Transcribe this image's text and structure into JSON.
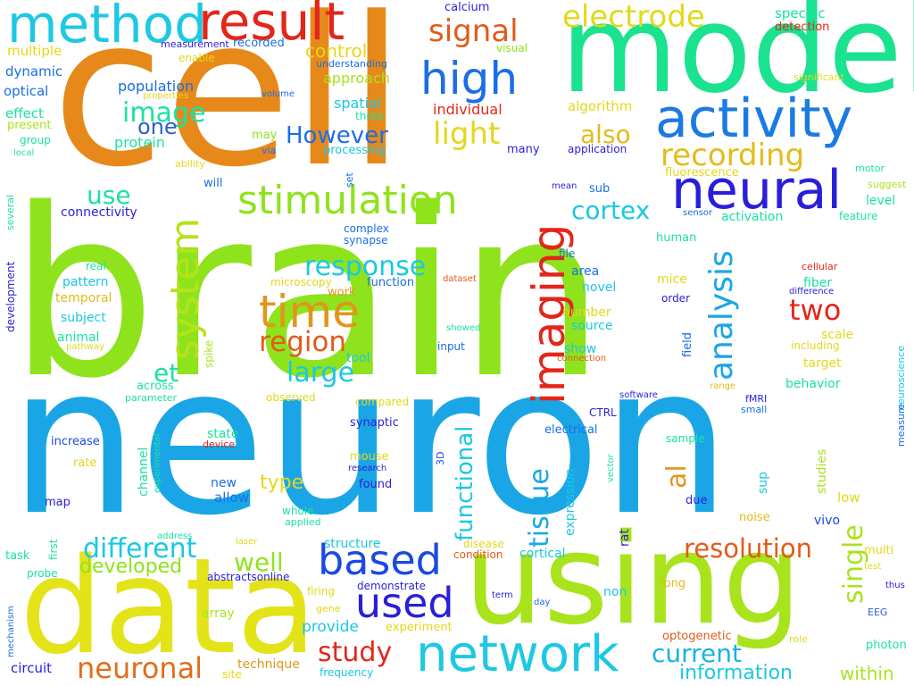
{
  "words": [
    {
      "text": "brain",
      "color": "#8ee31c"
    },
    {
      "text": "neuron",
      "color": "#1aa6e6"
    },
    {
      "text": "cell",
      "color": "#e6891a"
    },
    {
      "text": "model",
      "color": "#1ae28f"
    },
    {
      "text": "data",
      "color": "#e3e31a"
    },
    {
      "text": "using",
      "color": "#a8e31c"
    },
    {
      "text": "method",
      "color": "#1ec8e3"
    },
    {
      "text": "result",
      "color": "#e3261a"
    },
    {
      "text": "neural",
      "color": "#2a1fd9"
    },
    {
      "text": "activity",
      "color": "#1a7be3"
    },
    {
      "text": "high",
      "color": "#1a6ee6"
    },
    {
      "text": "signal",
      "color": "#e35a1a"
    },
    {
      "text": "electrode",
      "color": "#e3d81a"
    },
    {
      "text": "stimulation",
      "color": "#8ee31c"
    },
    {
      "text": "system",
      "color": "#b5e31a"
    },
    {
      "text": "time",
      "color": "#e3951a"
    },
    {
      "text": "imaging",
      "color": "#e3261a"
    },
    {
      "text": "network",
      "color": "#1ec8e3"
    },
    {
      "text": "based",
      "color": "#1a49e3"
    },
    {
      "text": "used",
      "color": "#2a1fd9"
    },
    {
      "text": "recording",
      "color": "#e3bb1a"
    },
    {
      "text": "analysis",
      "color": "#1aa6e6"
    },
    {
      "text": "neuronal",
      "color": "#e36d1a"
    },
    {
      "text": "response",
      "color": "#1ac8e3"
    },
    {
      "text": "region",
      "color": "#e35a1a"
    },
    {
      "text": "large",
      "color": "#1ac8e3"
    },
    {
      "text": "different",
      "color": "#1ac8e3"
    },
    {
      "text": "study",
      "color": "#e3261a"
    },
    {
      "text": "current",
      "color": "#1ab2e3"
    },
    {
      "text": "resolution",
      "color": "#e35a1a"
    },
    {
      "text": "cortex",
      "color": "#1ac8e3"
    },
    {
      "text": "two",
      "color": "#e3261a"
    },
    {
      "text": "light",
      "color": "#e3d81a"
    },
    {
      "text": "image",
      "color": "#1ae2a2"
    },
    {
      "text": "However",
      "color": "#1a6ee6"
    },
    {
      "text": "single",
      "color": "#a8e31c"
    },
    {
      "text": "tissue",
      "color": "#1aa6e6"
    },
    {
      "text": "functional",
      "color": "#1ac8e3"
    },
    {
      "text": "well",
      "color": "#8ee31c"
    },
    {
      "text": "also",
      "color": "#e3bb1a"
    },
    {
      "text": "one",
      "color": "#2a5fd9"
    },
    {
      "text": "use",
      "color": "#1ae2a2"
    },
    {
      "text": "al",
      "color": "#e3951a"
    },
    {
      "text": "et",
      "color": "#1ae2a2"
    },
    {
      "text": "information",
      "color": "#1ac8e3"
    },
    {
      "text": "type",
      "color": "#e3d81a"
    },
    {
      "text": "within",
      "color": "#a8e31c"
    },
    {
      "text": "developed",
      "color": "#8ee31c"
    },
    {
      "text": "control",
      "color": "#e3d81a"
    },
    {
      "text": "approach",
      "color": "#a8e31c"
    },
    {
      "text": "population",
      "color": "#1a6ee6"
    },
    {
      "text": "protein",
      "color": "#1ae2a2"
    },
    {
      "text": "spatial",
      "color": "#1ac8e3"
    },
    {
      "text": "individual",
      "color": "#e3261a"
    },
    {
      "text": "algorithm",
      "color": "#e3d81a"
    },
    {
      "text": "fluorescence",
      "color": "#e3d81a"
    },
    {
      "text": "specific",
      "color": "#1ae2a2"
    },
    {
      "text": "detection",
      "color": "#e3261a"
    },
    {
      "text": "calcium",
      "color": "#2a1fd9"
    },
    {
      "text": "visual",
      "color": "#8ee31c"
    },
    {
      "text": "measurement",
      "color": "#2a1fd9"
    },
    {
      "text": "recorded",
      "color": "#1a6ee6"
    },
    {
      "text": "multiple",
      "color": "#e3d81a"
    },
    {
      "text": "enable",
      "color": "#e3d81a"
    },
    {
      "text": "dynamic",
      "color": "#1a6ee6"
    },
    {
      "text": "understanding",
      "color": "#1a6ee6"
    },
    {
      "text": "optical",
      "color": "#1a6ee6"
    },
    {
      "text": "properties",
      "color": "#e3d81a"
    },
    {
      "text": "volume",
      "color": "#1a6ee6"
    },
    {
      "text": "significant",
      "color": "#e3d81a"
    },
    {
      "text": "effect",
      "color": "#1ae2a2"
    },
    {
      "text": "three",
      "color": "#1ae2a2"
    },
    {
      "text": "present",
      "color": "#a8e31c"
    },
    {
      "text": "group",
      "color": "#1ae2a2"
    },
    {
      "text": "may",
      "color": "#8ee31c"
    },
    {
      "text": "processing",
      "color": "#1ac8e3"
    },
    {
      "text": "local",
      "color": "#1ae2a2"
    },
    {
      "text": "via",
      "color": "#1a6ee6"
    },
    {
      "text": "many",
      "color": "#2a1fd9"
    },
    {
      "text": "application",
      "color": "#2a1fd9"
    },
    {
      "text": "ability",
      "color": "#e3d81a"
    },
    {
      "text": "will",
      "color": "#1a6ee6"
    },
    {
      "text": "set",
      "color": "#1a6ee6"
    },
    {
      "text": "mean",
      "color": "#2a1fd9"
    },
    {
      "text": "sub",
      "color": "#1a6ee6"
    },
    {
      "text": "motor",
      "color": "#1ae2a2"
    },
    {
      "text": "suggest",
      "color": "#a8e31c"
    },
    {
      "text": "connectivity",
      "color": "#2a1fd9"
    },
    {
      "text": "several",
      "color": "#1ae2a2"
    },
    {
      "text": "complex",
      "color": "#1a6ee6"
    },
    {
      "text": "sensor",
      "color": "#1a6ee6"
    },
    {
      "text": "activation",
      "color": "#1ae2a2"
    },
    {
      "text": "feature",
      "color": "#1ae2a2"
    },
    {
      "text": "level",
      "color": "#1ae2a2"
    },
    {
      "text": "synapse",
      "color": "#1a6ee6"
    },
    {
      "text": "human",
      "color": "#1ae2a2"
    },
    {
      "text": "development",
      "color": "#2a1fd9"
    },
    {
      "text": "file",
      "color": "#1a6ee6"
    },
    {
      "text": "real",
      "color": "#1ae2a2"
    },
    {
      "text": "microscopy",
      "color": "#e3d81a"
    },
    {
      "text": "area",
      "color": "#1a6ee6"
    },
    {
      "text": "cellular",
      "color": "#e3261a"
    },
    {
      "text": "pattern",
      "color": "#1ac8e3"
    },
    {
      "text": "dataset",
      "color": "#e35a1a"
    },
    {
      "text": "mice",
      "color": "#e3d81a"
    },
    {
      "text": "fiber",
      "color": "#1ae2a2"
    },
    {
      "text": "function",
      "color": "#1a6ee6"
    },
    {
      "text": "novel",
      "color": "#1ac8e3"
    },
    {
      "text": "difference",
      "color": "#2a1fd9"
    },
    {
      "text": "temporal",
      "color": "#e3bb1a"
    },
    {
      "text": "work",
      "color": "#e3951a"
    },
    {
      "text": "order",
      "color": "#2a1fd9"
    },
    {
      "text": "subject",
      "color": "#1ac8e3"
    },
    {
      "text": "number",
      "color": "#e3d81a"
    },
    {
      "text": "field",
      "color": "#1a6ee6"
    },
    {
      "text": "neuroscience",
      "color": "#1ac8e3"
    },
    {
      "text": "animal",
      "color": "#1ae2a2"
    },
    {
      "text": "showed",
      "color": "#1ae2a2"
    },
    {
      "text": "source",
      "color": "#1ac8e3"
    },
    {
      "text": "scale",
      "color": "#e3d81a"
    },
    {
      "text": "pathway",
      "color": "#e3d81a"
    },
    {
      "text": "input",
      "color": "#1a6ee6"
    },
    {
      "text": "show",
      "color": "#1ac8e3"
    },
    {
      "text": "including",
      "color": "#e3d81a"
    },
    {
      "text": "tool",
      "color": "#1ac8e3"
    },
    {
      "text": "connection",
      "color": "#e35a1a"
    },
    {
      "text": "target",
      "color": "#e3d81a"
    },
    {
      "text": "spike",
      "color": "#a8e31c"
    },
    {
      "text": "across",
      "color": "#1ae2a2"
    },
    {
      "text": "parameter",
      "color": "#1ae2a2"
    },
    {
      "text": "behavior",
      "color": "#1ae2a2"
    },
    {
      "text": "range",
      "color": "#e3bb1a"
    },
    {
      "text": "observed",
      "color": "#e3d81a"
    },
    {
      "text": "software",
      "color": "#2a1fd9"
    },
    {
      "text": "compared",
      "color": "#e3d81a"
    },
    {
      "text": "fMRI",
      "color": "#2a1fd9"
    },
    {
      "text": "small",
      "color": "#1a6ee6"
    },
    {
      "text": "CTRL",
      "color": "#2a1fd9"
    },
    {
      "text": "state",
      "color": "#1ae2a2"
    },
    {
      "text": "synaptic",
      "color": "#2a1fd9"
    },
    {
      "text": "electrical",
      "color": "#1a6ee6"
    },
    {
      "text": "measure",
      "color": "#1a6ee6"
    },
    {
      "text": "increase",
      "color": "#1a49e3"
    },
    {
      "text": "device",
      "color": "#e3261a"
    },
    {
      "text": "experimental",
      "color": "#1ae2a2"
    },
    {
      "text": "sample",
      "color": "#1ae2a2"
    },
    {
      "text": "3D",
      "color": "#1a49e3"
    },
    {
      "text": "rate",
      "color": "#e3d81a"
    },
    {
      "text": "mouse",
      "color": "#e3d81a"
    },
    {
      "text": "research",
      "color": "#2a1fd9"
    },
    {
      "text": "vector",
      "color": "#1ae2a2"
    },
    {
      "text": "studies",
      "color": "#a8e31c"
    },
    {
      "text": "channel",
      "color": "#1ae2a2"
    },
    {
      "text": "new",
      "color": "#1a6ee6"
    },
    {
      "text": "sup",
      "color": "#1ac8e3"
    },
    {
      "text": "found",
      "color": "#2a1fd9"
    },
    {
      "text": "expression",
      "color": "#1ac8e3"
    },
    {
      "text": "low",
      "color": "#e3d81a"
    },
    {
      "text": "map",
      "color": "#2a1fd9"
    },
    {
      "text": "allow",
      "color": "#1a6ee6"
    },
    {
      "text": "due",
      "color": "#2a1fd9"
    },
    {
      "text": "whole",
      "color": "#1ae2a2"
    },
    {
      "text": "noise",
      "color": "#e3bb1a"
    },
    {
      "text": "applied",
      "color": "#1ae2a2"
    },
    {
      "text": "vivo",
      "color": "#1a49e3"
    },
    {
      "text": "first",
      "color": "#1ae2a2"
    },
    {
      "text": "address",
      "color": "#1ae2a2"
    },
    {
      "text": "laser",
      "color": "#e3d81a"
    },
    {
      "text": "disease",
      "color": "#e3d81a"
    },
    {
      "text": "rat",
      "color": "#2a1fd9"
    },
    {
      "text": "multi",
      "color": "#e3d81a"
    },
    {
      "text": "task",
      "color": "#1ae2a2"
    },
    {
      "text": "structure",
      "color": "#1ac8e3"
    },
    {
      "text": "condition",
      "color": "#e35a1a"
    },
    {
      "text": "cortical",
      "color": "#1ac8e3"
    },
    {
      "text": "test",
      "color": "#e3d81a"
    },
    {
      "text": "probe",
      "color": "#1ae2a2"
    },
    {
      "text": "abstractsonline",
      "color": "#2a1fd9"
    },
    {
      "text": "long",
      "color": "#e3bb1a"
    },
    {
      "text": "thus",
      "color": "#2a1fd9"
    },
    {
      "text": "non",
      "color": "#1ac8e3"
    },
    {
      "text": "mechanism",
      "color": "#1a6ee6"
    },
    {
      "text": "demonstrate",
      "color": "#2a1fd9"
    },
    {
      "text": "firing",
      "color": "#e3d81a"
    },
    {
      "text": "term",
      "color": "#2a1fd9"
    },
    {
      "text": "array",
      "color": "#a8e31c"
    },
    {
      "text": "gene",
      "color": "#e3d81a"
    },
    {
      "text": "day",
      "color": "#1a6ee6"
    },
    {
      "text": "EEG",
      "color": "#2a5fd9"
    },
    {
      "text": "provide",
      "color": "#1ac8e3"
    },
    {
      "text": "experiment",
      "color": "#e3d81a"
    },
    {
      "text": "optogenetic",
      "color": "#e35a1a"
    },
    {
      "text": "role",
      "color": "#e3d81a"
    },
    {
      "text": "photon",
      "color": "#1ae2a2"
    },
    {
      "text": "technique",
      "color": "#e3951a"
    },
    {
      "text": "circuit",
      "color": "#2a1fd9"
    },
    {
      "text": "site",
      "color": "#e3d81a"
    },
    {
      "text": "frequency",
      "color": "#1ac8e3"
    }
  ]
}
